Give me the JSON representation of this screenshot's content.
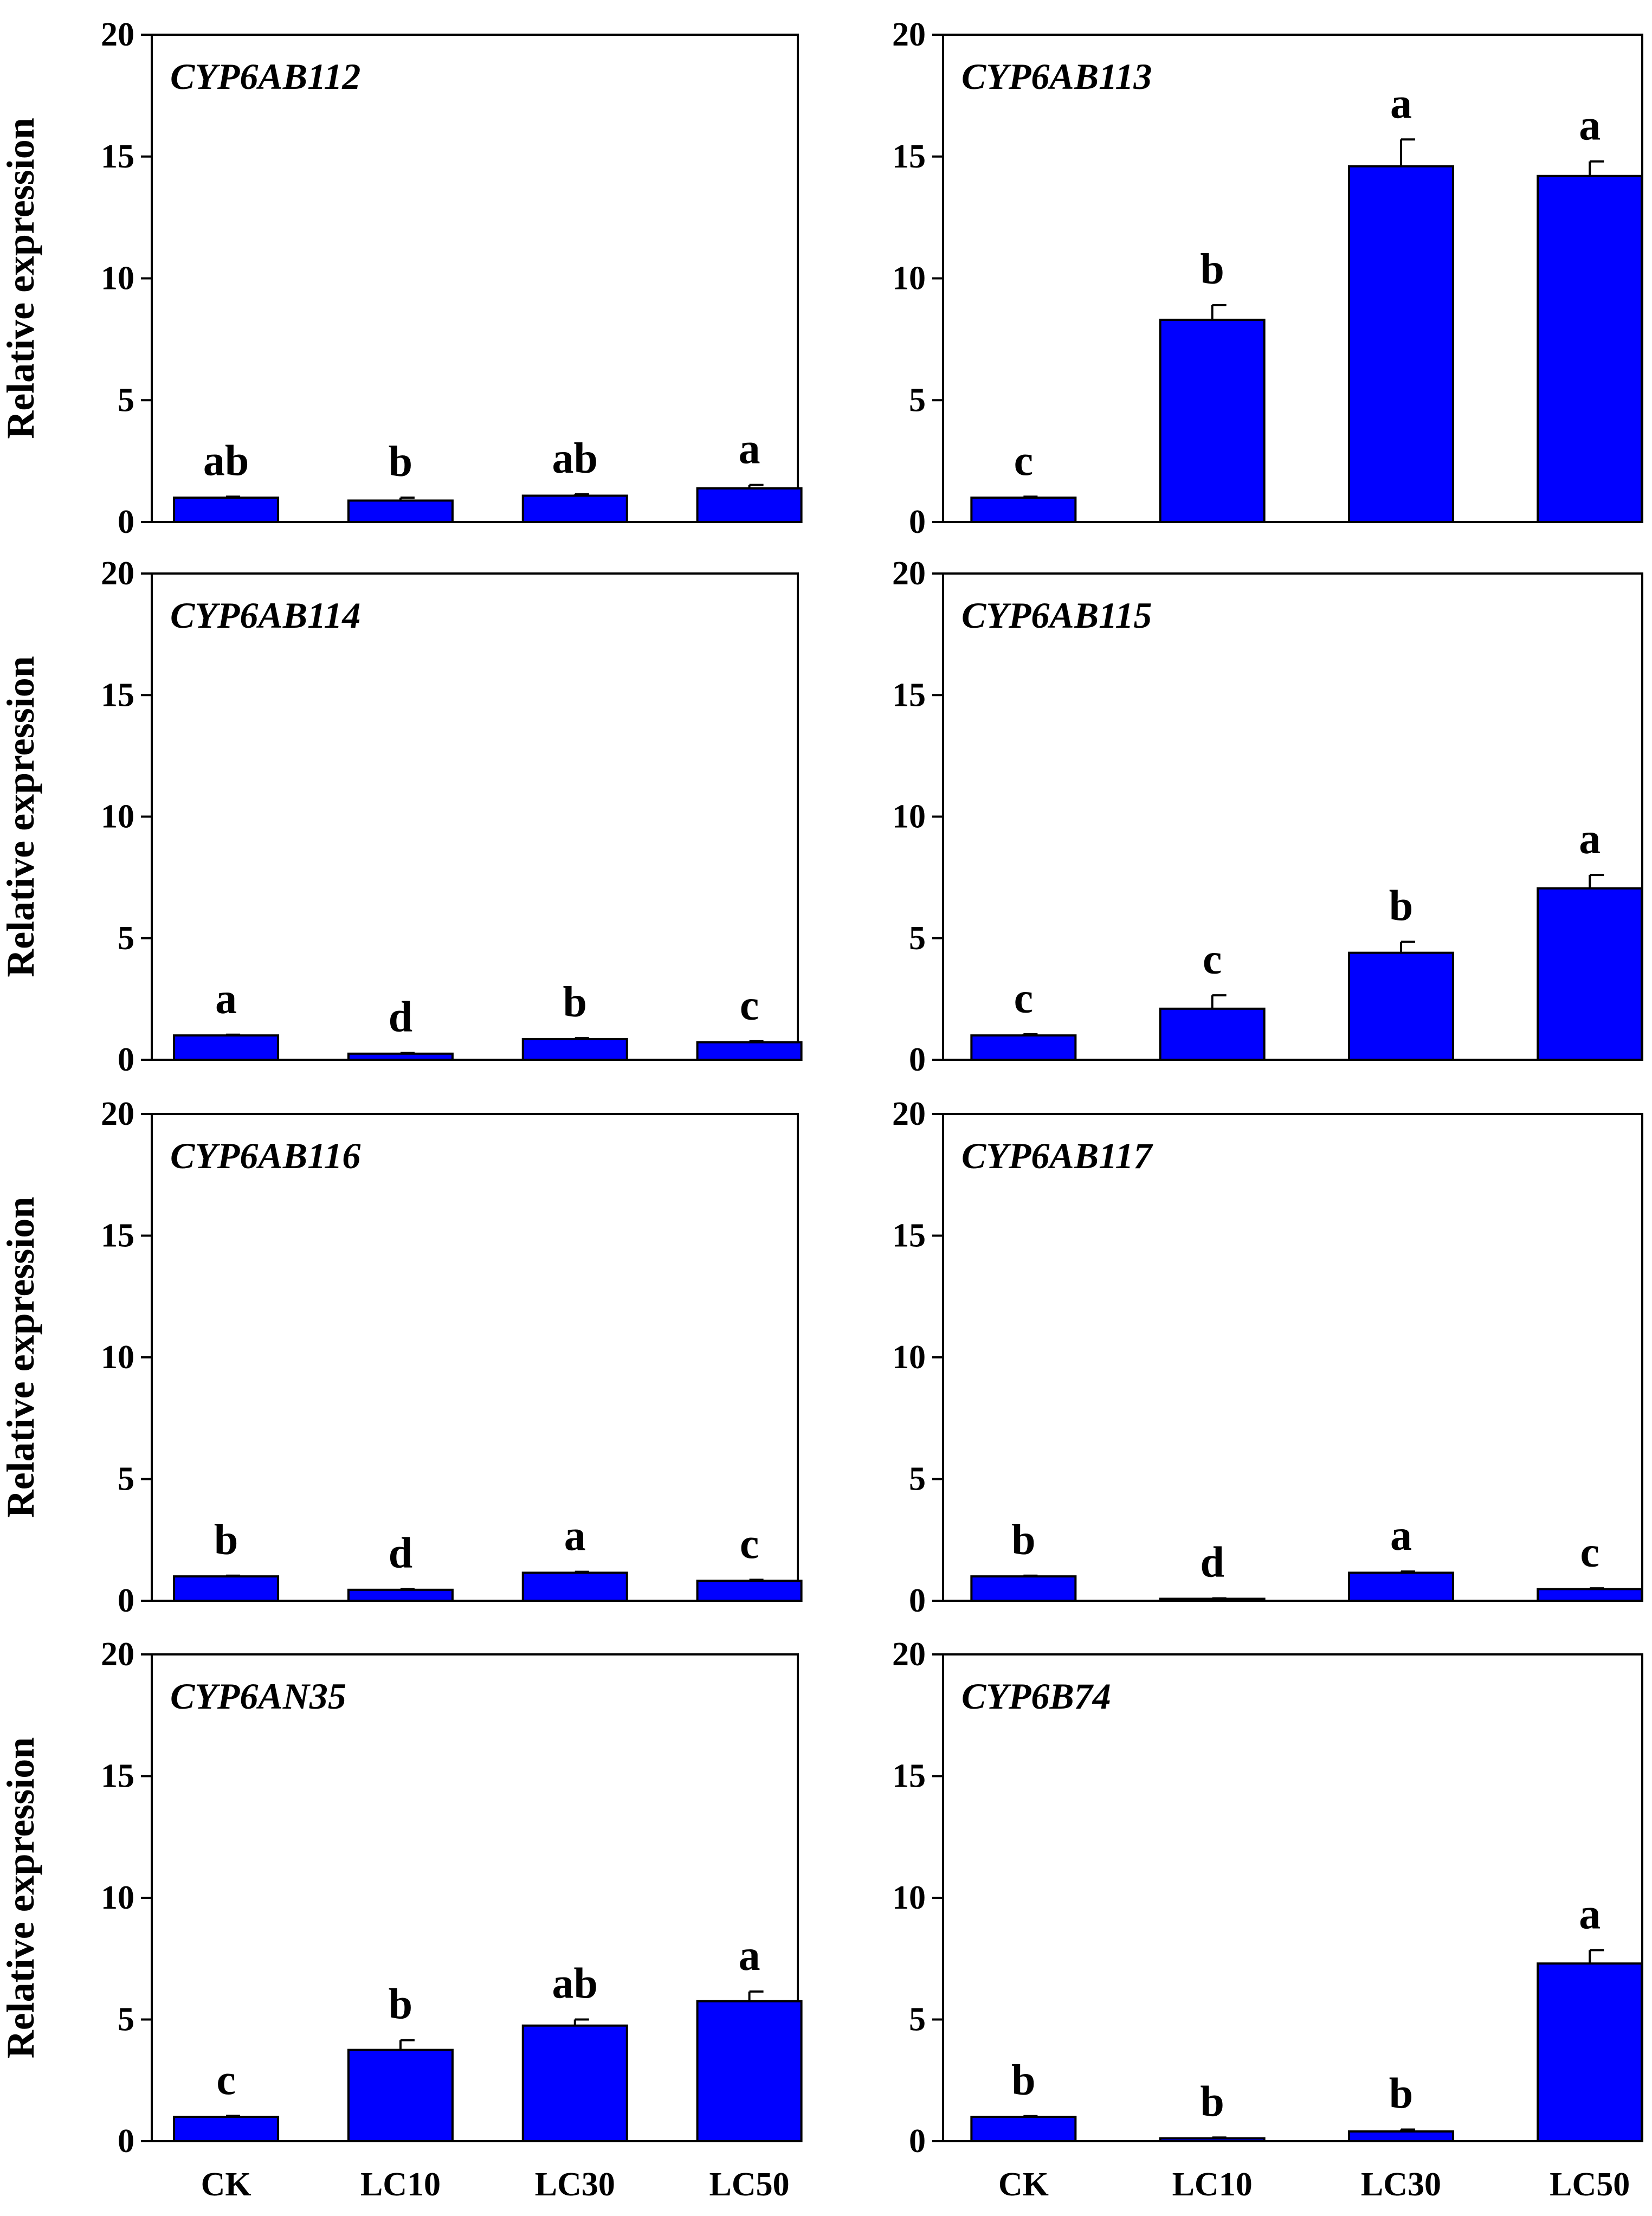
{
  "figure": {
    "ylabel": "Relative expression",
    "categories": [
      "CK",
      "LC10",
      "LC30",
      "LC50"
    ]
  },
  "colors": {
    "bar": "#0000ff",
    "axis": "#000000",
    "background": "#ffffff"
  },
  "chart_data": [
    {
      "type": "bar",
      "title": "CYP6AB112",
      "categories": [
        "CK",
        "LC10",
        "LC30",
        "LC50"
      ],
      "values": [
        1.0,
        0.88,
        1.08,
        1.38
      ],
      "errors": [
        0.04,
        0.12,
        0.06,
        0.14
      ],
      "labels": [
        "ab",
        "b",
        "ab",
        "a"
      ],
      "ylabel": "Relative expression",
      "ylim": [
        0,
        20
      ],
      "yticks": [
        "0",
        "5",
        "10",
        "15",
        "20"
      ]
    },
    {
      "type": "bar",
      "title": "CYP6AB113",
      "categories": [
        "CK",
        "LC10",
        "LC30",
        "LC50"
      ],
      "values": [
        1.0,
        8.3,
        14.6,
        14.2
      ],
      "errors": [
        0.04,
        0.6,
        1.1,
        0.6
      ],
      "labels": [
        "c",
        "b",
        "a",
        "a"
      ],
      "ylabel": "",
      "ylim": [
        0,
        20
      ],
      "yticks": [
        "0",
        "5",
        "10",
        "15",
        "20"
      ]
    },
    {
      "type": "bar",
      "title": "CYP6AB114",
      "categories": [
        "CK",
        "LC10",
        "LC30",
        "LC50"
      ],
      "values": [
        1.0,
        0.25,
        0.85,
        0.72
      ],
      "errors": [
        0.03,
        0.03,
        0.04,
        0.04
      ],
      "labels": [
        "a",
        "d",
        "b",
        "c"
      ],
      "ylabel": "Relative expression",
      "ylim": [
        0,
        20
      ],
      "yticks": [
        "0",
        "5",
        "10",
        "15",
        "20"
      ]
    },
    {
      "type": "bar",
      "title": "CYP6AB115",
      "categories": [
        "CK",
        "LC10",
        "LC30",
        "LC50"
      ],
      "values": [
        1.0,
        2.1,
        4.4,
        7.05
      ],
      "errors": [
        0.05,
        0.55,
        0.45,
        0.55
      ],
      "labels": [
        "c",
        "c",
        "b",
        "a"
      ],
      "ylabel": "",
      "ylim": [
        0,
        20
      ],
      "yticks": [
        "0",
        "5",
        "10",
        "15",
        "20"
      ]
    },
    {
      "type": "bar",
      "title": "CYP6AB116",
      "categories": [
        "CK",
        "LC10",
        "LC30",
        "LC50"
      ],
      "values": [
        1.0,
        0.45,
        1.15,
        0.82
      ],
      "errors": [
        0.03,
        0.03,
        0.04,
        0.04
      ],
      "labels": [
        "b",
        "d",
        "a",
        "c"
      ],
      "ylabel": "Relative expression",
      "ylim": [
        0,
        20
      ],
      "yticks": [
        "0",
        "5",
        "10",
        "15",
        "20"
      ]
    },
    {
      "type": "bar",
      "title": "CYP6AB117",
      "categories": [
        "CK",
        "LC10",
        "LC30",
        "LC50"
      ],
      "values": [
        1.0,
        0.08,
        1.15,
        0.48
      ],
      "errors": [
        0.03,
        0.02,
        0.05,
        0.03
      ],
      "labels": [
        "b",
        "d",
        "a",
        "c"
      ],
      "ylabel": "",
      "ylim": [
        0,
        20
      ],
      "yticks": [
        "0",
        "5",
        "10",
        "15",
        "20"
      ]
    },
    {
      "type": "bar",
      "title": "CYP6AN35",
      "categories": [
        "CK",
        "LC10",
        "LC30",
        "LC50"
      ],
      "values": [
        1.0,
        3.75,
        4.75,
        5.75
      ],
      "errors": [
        0.04,
        0.4,
        0.25,
        0.4
      ],
      "labels": [
        "c",
        "b",
        "ab",
        "a"
      ],
      "ylabel": "Relative expression",
      "ylim": [
        0,
        20
      ],
      "yticks": [
        "0",
        "5",
        "10",
        "15",
        "20"
      ]
    },
    {
      "type": "bar",
      "title": "CYP6B74",
      "categories": [
        "CK",
        "LC10",
        "LC30",
        "LC50"
      ],
      "values": [
        1.0,
        0.12,
        0.4,
        7.3
      ],
      "errors": [
        0.03,
        0.03,
        0.08,
        0.55
      ],
      "labels": [
        "b",
        "b",
        "b",
        "a"
      ],
      "ylabel": "",
      "ylim": [
        0,
        20
      ],
      "yticks": [
        "0",
        "5",
        "10",
        "15",
        "20"
      ]
    }
  ]
}
